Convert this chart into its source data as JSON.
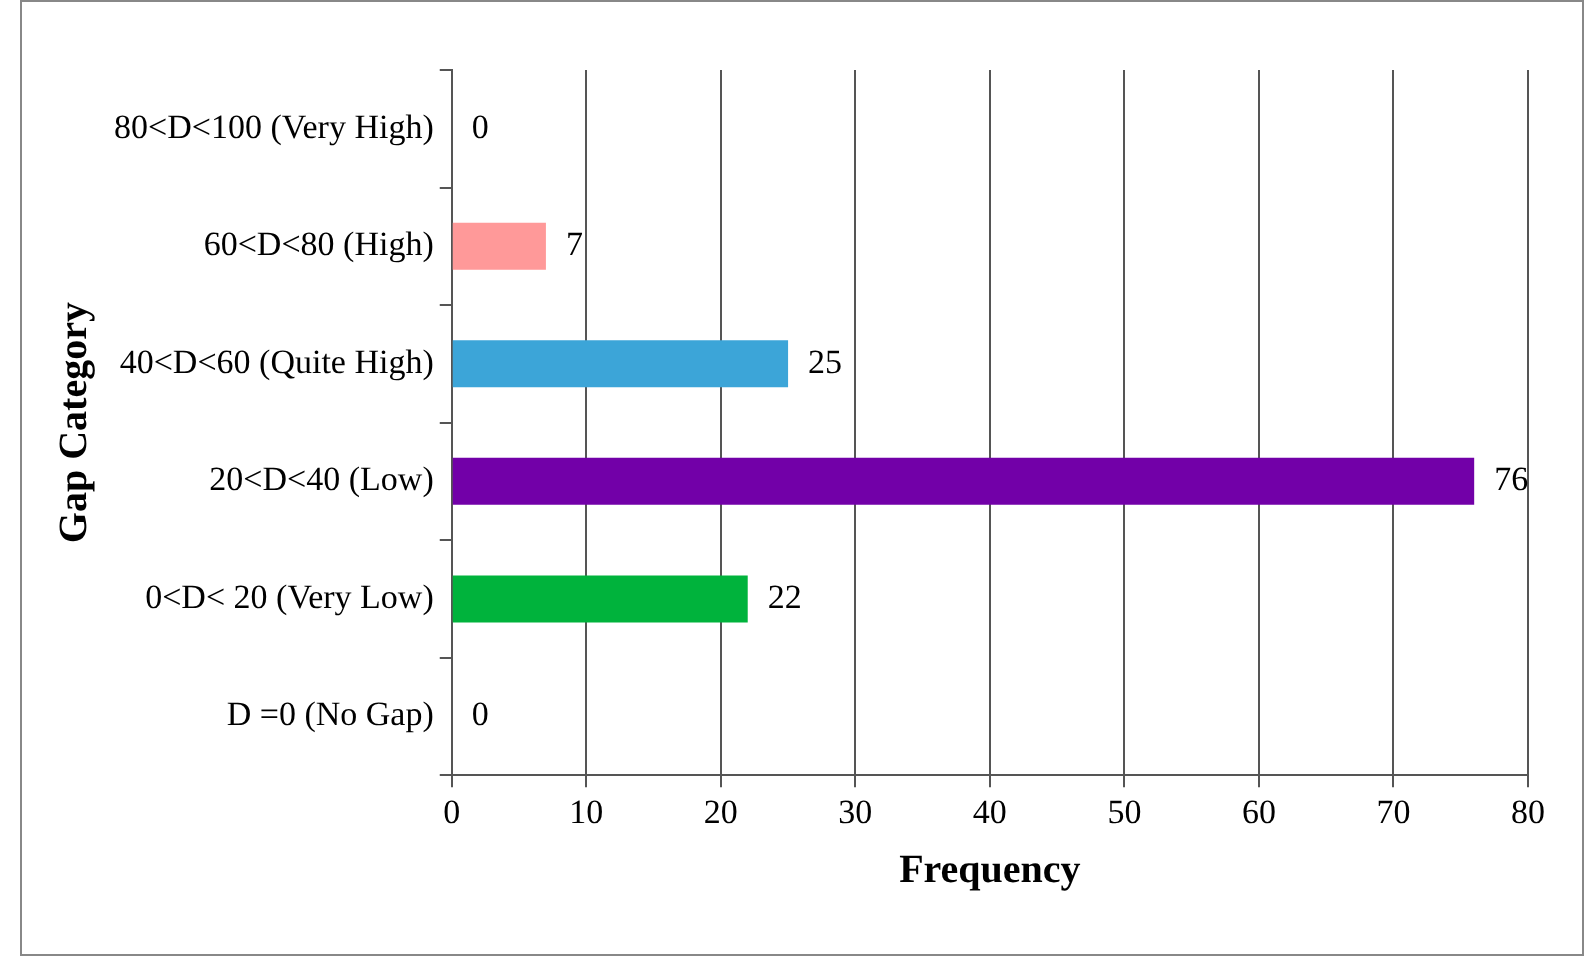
{
  "chart_data": {
    "type": "bar",
    "orientation": "horizontal",
    "xlabel": "Frequency",
    "ylabel": "Gap Category",
    "categories": [
      "80<D<100 (Very High)",
      "60<D<80 (High)",
      "40<D<60 (Quite High)",
      "20<D<40 (Low)",
      "0<D< 20 (Very Low)",
      "D =0 (No Gap)"
    ],
    "values": [
      0,
      7,
      25,
      76,
      22,
      0
    ],
    "colors": [
      "#ff9999",
      "#ff9999",
      "#3ca5d8",
      "#7200a8",
      "#00b33c",
      "#00b33c"
    ],
    "xlim": [
      0,
      80
    ],
    "xticks": [
      0,
      10,
      20,
      30,
      40,
      50,
      60,
      70,
      80
    ],
    "grid": "x",
    "data_labels": true,
    "legend": false
  }
}
